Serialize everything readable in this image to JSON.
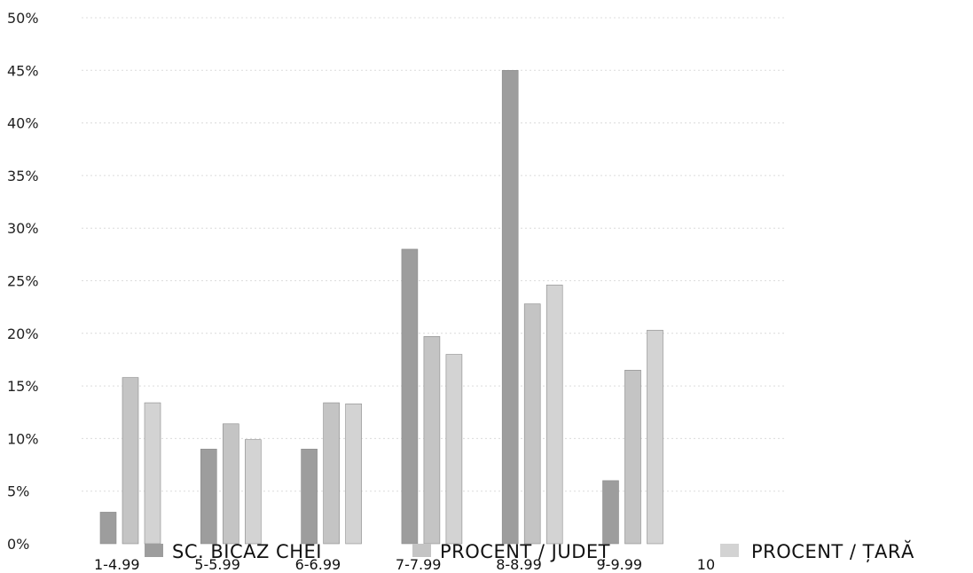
{
  "chart_data": {
    "type": "bar",
    "categories": [
      "1-4.99",
      "5-5.99",
      "6-6.99",
      "7-7.99",
      "8-8.99",
      "9-9.99",
      "10"
    ],
    "series": [
      {
        "name": "SC. BICAZ CHEI",
        "values": [
          3,
          9,
          9,
          28,
          45,
          6,
          0
        ],
        "color": "#9d9d9d"
      },
      {
        "name": "PROCENT / JUDEȚ",
        "values": [
          15.8,
          11.4,
          13.4,
          19.7,
          22.8,
          16.5,
          0
        ],
        "color": "#c4c4c4"
      },
      {
        "name": "PROCENT / ȚARĂ",
        "values": [
          13.4,
          9.9,
          13.3,
          18.0,
          24.6,
          20.3,
          0
        ],
        "color": "#d3d3d3"
      }
    ],
    "yticks": [
      "0%",
      "5%",
      "10%",
      "15%",
      "20%",
      "25%",
      "30%",
      "35%",
      "40%",
      "45%",
      "50%"
    ],
    "ylim": [
      0,
      50
    ],
    "title": "",
    "xlabel": "",
    "ylabel": "",
    "grid": true,
    "legend_position": "bottom"
  }
}
